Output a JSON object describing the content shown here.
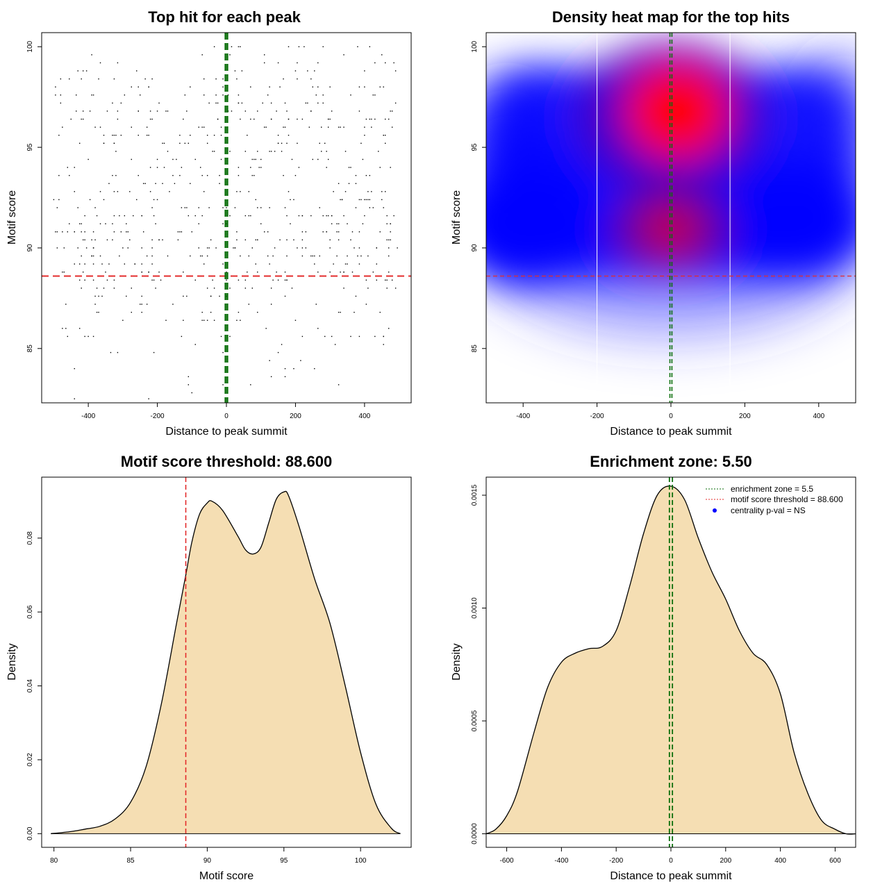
{
  "colors": {
    "threshold_red": "#e32a2a",
    "zone_green": "#0a6e0a",
    "density_fill": "#f5deb3",
    "heat_low": "#ffffff",
    "heat_mid": "#0000ff",
    "heat_high": "#ff0000",
    "point": "#000000"
  },
  "chart_data": [
    {
      "id": "scatter",
      "type": "scatter",
      "title": "Top hit for each peak",
      "xlabel": "Distance to peak summit",
      "ylabel": "Motif score",
      "xlim": [
        -535,
        535
      ],
      "ylim": [
        82.3,
        100.7
      ],
      "xticks": [
        -400,
        -200,
        0,
        200,
        400
      ],
      "yticks": [
        85,
        90,
        95,
        100
      ],
      "hline": 88.6,
      "vlines": [
        -2.75,
        2.75
      ],
      "n_points_estimated": 700,
      "points_note": "dense cloud of top-hit points, x roughly uniform in [-500, 500], y mostly in [84, 100]"
    },
    {
      "id": "heatmap",
      "type": "heatmap",
      "title": "Density heat map for the top hits",
      "xlabel": "Distance to peak summit",
      "ylabel": "Motif score",
      "xlim": [
        -500,
        500
      ],
      "ylim": [
        82.3,
        100.7
      ],
      "xticks": [
        -400,
        -200,
        0,
        200,
        400
      ],
      "yticks": [
        85,
        90,
        95,
        100
      ],
      "hline": 88.6,
      "vlines": [
        -2.75,
        2.75
      ],
      "white_vlines": [
        -200,
        160
      ],
      "hotspots": [
        {
          "x": 0,
          "y": 96.3,
          "intensity": "high"
        },
        {
          "x": 5,
          "y": 90.5,
          "intensity": "medium-high"
        }
      ]
    },
    {
      "id": "score_density",
      "type": "area",
      "title": "Motif score threshold: 88.600",
      "xlabel": "Motif score",
      "ylabel": "Density",
      "xlim": [
        79.2,
        103.3
      ],
      "ylim": [
        -0.0037,
        0.0965
      ],
      "xticks": [
        80,
        85,
        90,
        95,
        100
      ],
      "yticks": [
        0.0,
        0.02,
        0.04,
        0.06,
        0.08
      ],
      "ytick_labels": [
        "0.00",
        "0.02",
        "0.04",
        "0.06",
        "0.08"
      ],
      "vline": 88.6,
      "x": [
        79.8,
        81,
        82,
        83,
        84,
        85,
        86,
        87,
        88,
        88.6,
        89,
        89.5,
        90,
        90.3,
        91,
        92,
        92.5,
        93,
        93.5,
        94,
        94.5,
        95,
        95.3,
        96,
        97,
        98,
        99,
        100,
        101,
        102,
        102.6
      ],
      "y": [
        0.0,
        0.0005,
        0.0012,
        0.002,
        0.004,
        0.0085,
        0.018,
        0.035,
        0.057,
        0.07,
        0.079,
        0.0865,
        0.0895,
        0.09,
        0.0875,
        0.0805,
        0.0768,
        0.0757,
        0.0775,
        0.084,
        0.0905,
        0.0925,
        0.0915,
        0.083,
        0.069,
        0.057,
        0.04,
        0.022,
        0.008,
        0.0015,
        0.0
      ]
    },
    {
      "id": "distance_density",
      "type": "area",
      "title": "Enrichment zone: 5.50",
      "xlabel": "Distance to peak summit",
      "ylabel": "Density",
      "xlim": [
        -675,
        675
      ],
      "ylim": [
        -6e-05,
        0.00158
      ],
      "xticks": [
        -600,
        -400,
        -200,
        0,
        200,
        400,
        600
      ],
      "yticks": [
        0.0,
        0.0005,
        0.001,
        0.0015
      ],
      "ytick_labels": [
        "0.0000",
        "0.0005",
        "0.0010",
        "0.0015"
      ],
      "vlines": [
        -5.5,
        5.5
      ],
      "x": [
        -675,
        -640,
        -600,
        -560,
        -500,
        -450,
        -400,
        -350,
        -300,
        -250,
        -200,
        -150,
        -100,
        -50,
        0,
        50,
        100,
        150,
        200,
        250,
        300,
        350,
        400,
        450,
        500,
        550,
        600,
        640,
        675
      ],
      "y": [
        0.0,
        2e-05,
        8e-05,
        0.00019,
        0.00045,
        0.00065,
        0.00076,
        0.0008,
        0.00082,
        0.00083,
        0.0009,
        0.0011,
        0.00133,
        0.0015,
        0.00154,
        0.00148,
        0.00131,
        0.00116,
        0.00104,
        0.0009,
        0.0008,
        0.00075,
        0.00062,
        0.00036,
        0.00018,
        6e-05,
        2e-05,
        0.0,
        0.0
      ],
      "legend": [
        {
          "label": "enrichment zone = 5.5",
          "style": "dotted",
          "color": "#0a6e0a"
        },
        {
          "label": "motif score threshold = 88.600",
          "style": "dotted",
          "color": "#e32a2a"
        },
        {
          "label": "centrality p-val = NS",
          "style": "point",
          "color": "#0000ff"
        }
      ],
      "legend_position": "top-right"
    }
  ]
}
